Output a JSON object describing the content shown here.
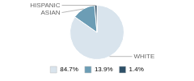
{
  "chart_data": {
    "type": "pie",
    "categories": [
      "WHITE",
      "ASIAN",
      "HISPANIC"
    ],
    "values": [
      84.7,
      13.9,
      1.4
    ],
    "value_labels": [
      "84.7%",
      "13.9%",
      "1.4%"
    ],
    "colors": [
      "#d9e4ed",
      "#6c9db5",
      "#2e5068"
    ],
    "legend": "bottom"
  }
}
